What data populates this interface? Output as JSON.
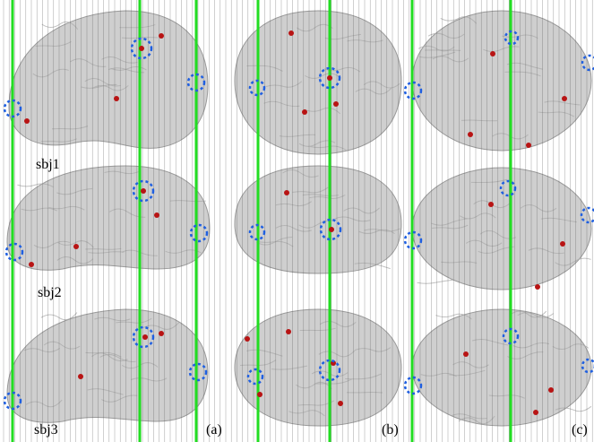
{
  "figure": {
    "subjects": [
      "sbj1",
      "sbj2",
      "sbj3"
    ],
    "panels": [
      "(a)",
      "(b)",
      "(c)"
    ]
  }
}
